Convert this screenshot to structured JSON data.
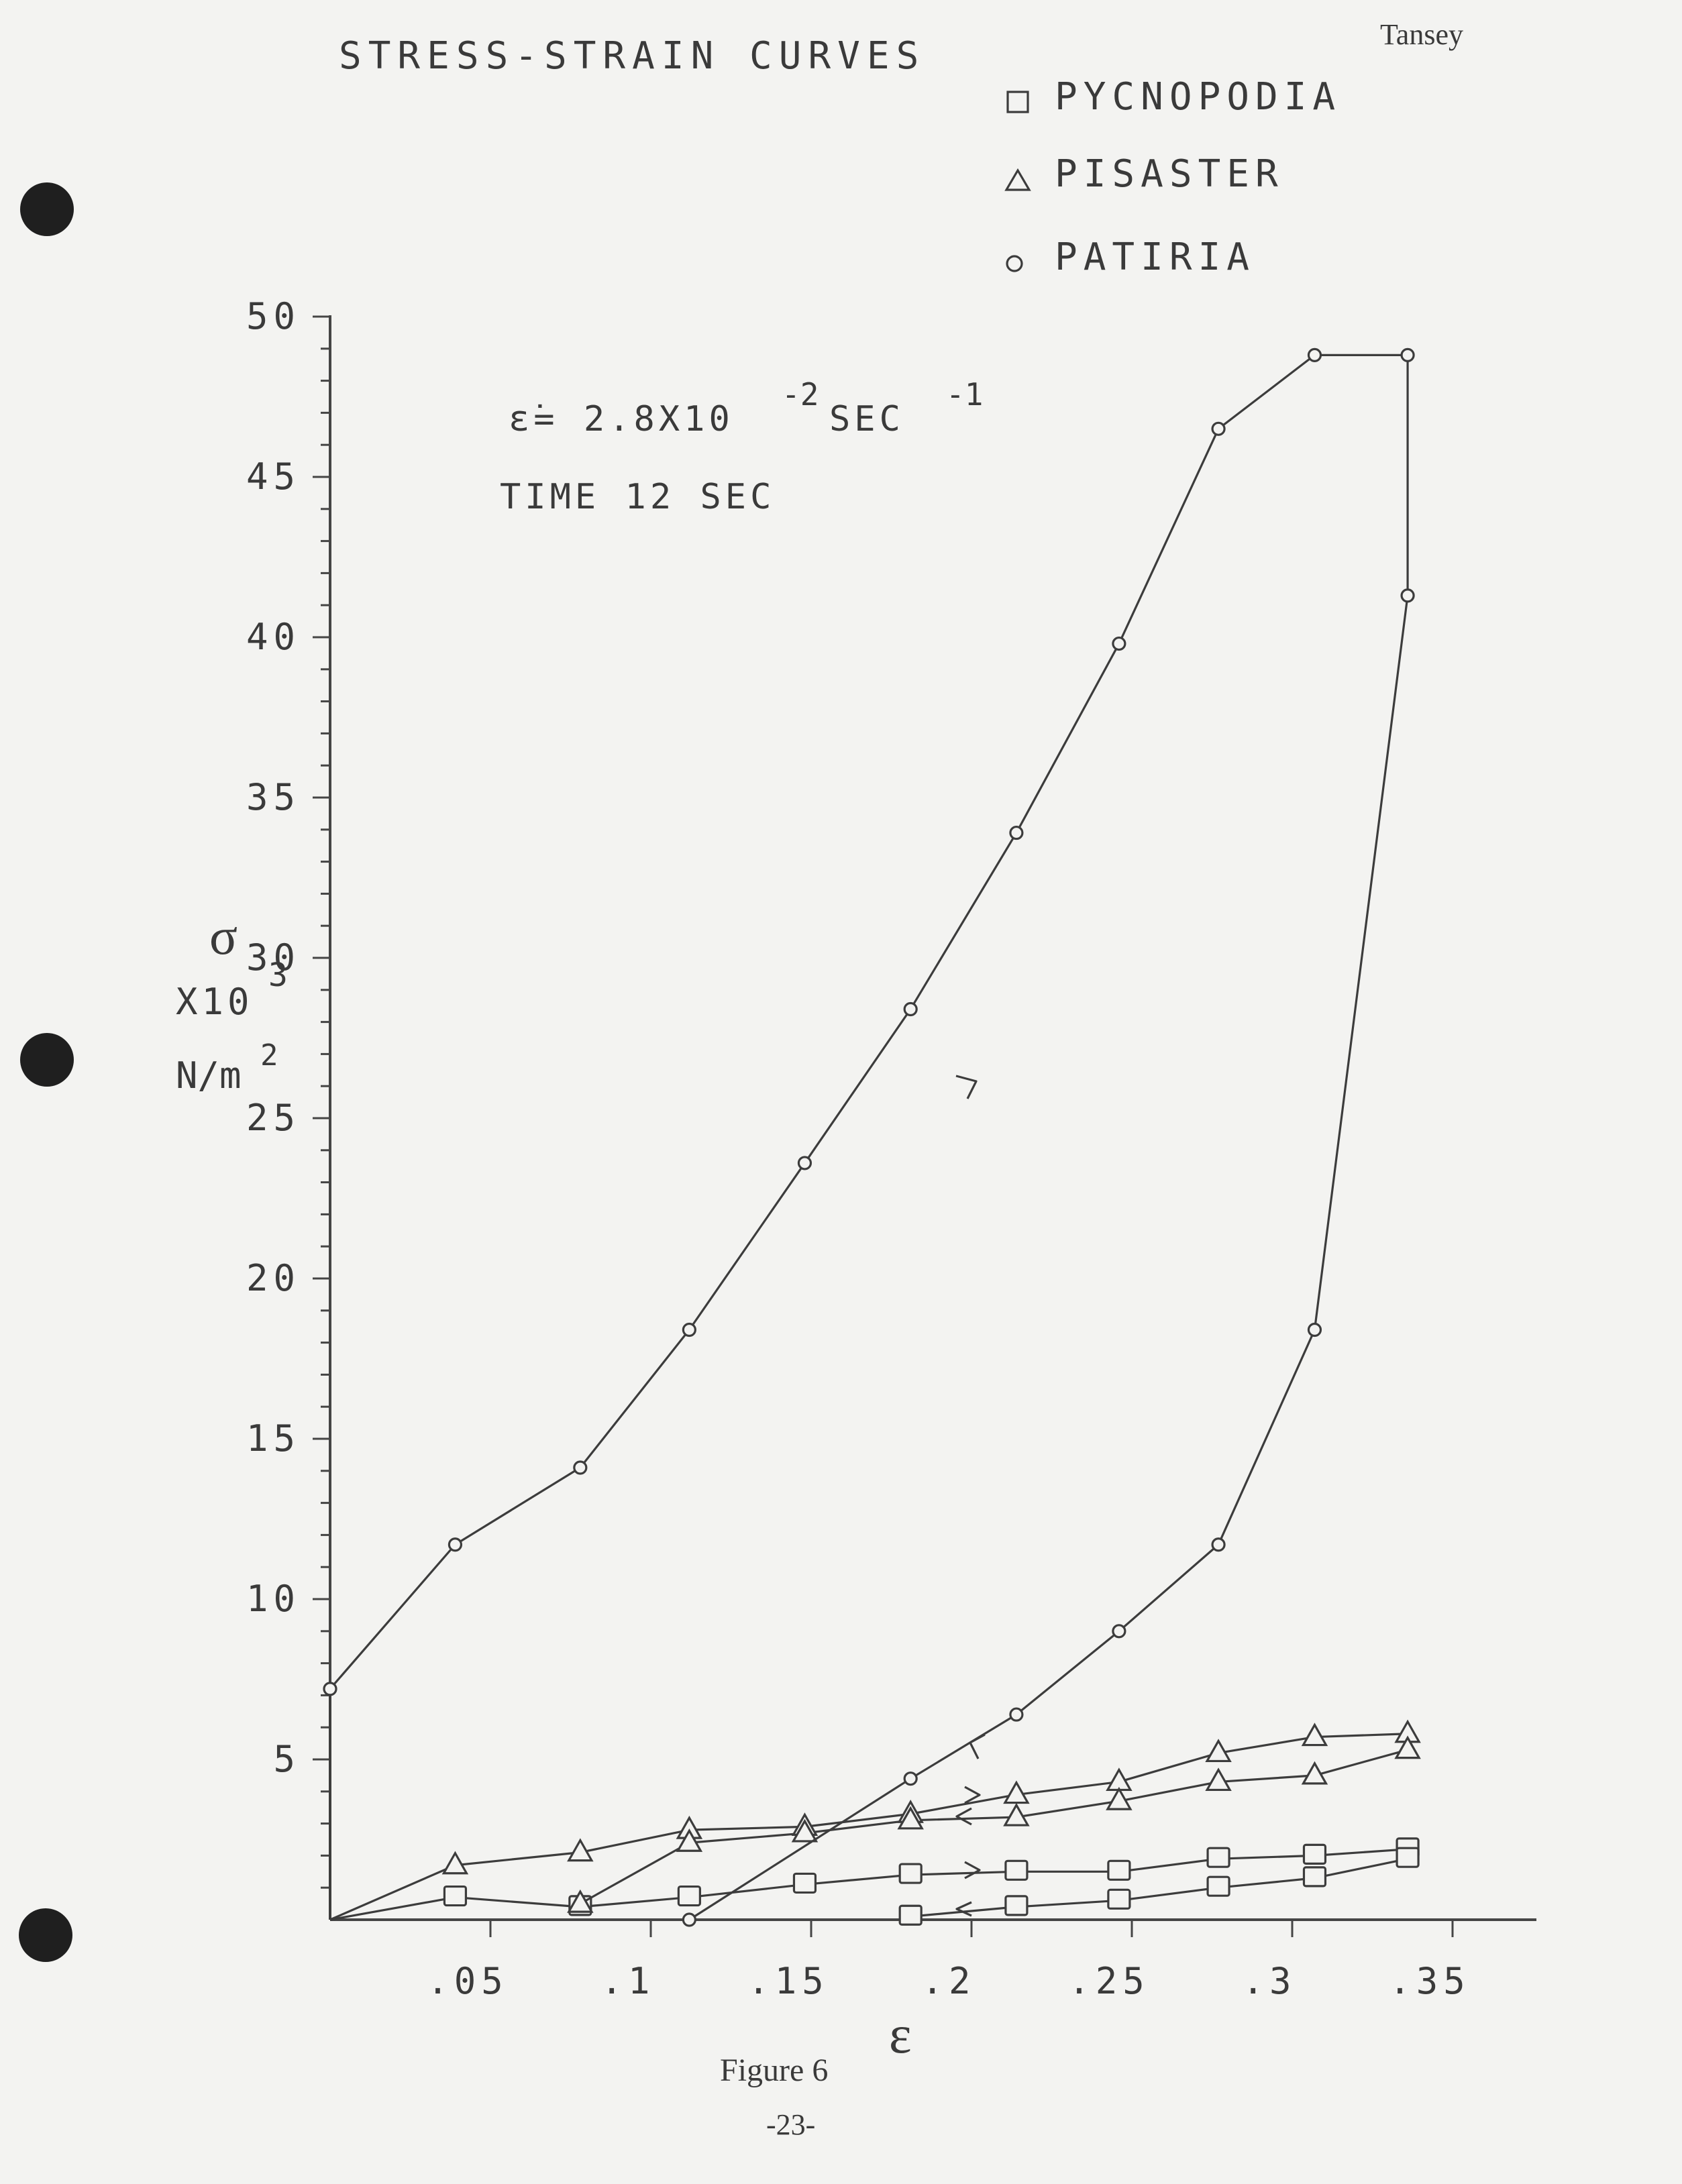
{
  "header": {
    "author": "Tansey"
  },
  "chart_data": {
    "type": "line",
    "title": "STRESS-STRAIN CURVES",
    "xlabel": "ε",
    "ylabel": [
      "σ",
      "X10",
      "3",
      "N/m",
      "2"
    ],
    "annotation_rate": {
      "prefix": "ε̇= 2.8X10",
      "exp1": "-2",
      "unit": "SEC",
      "exp2": "-1"
    },
    "annotation_time": "TIME  12 SEC",
    "xlim": [
      0,
      0.375
    ],
    "ylim": [
      0,
      50
    ],
    "xticks": [
      ".05",
      ".1",
      ".15",
      ".2",
      ".25",
      ".3",
      ".35"
    ],
    "xtick_values": [
      0.05,
      0.1,
      0.15,
      0.2,
      0.25,
      0.3,
      0.35
    ],
    "yticks": [
      "5",
      "10",
      "15",
      "20",
      "25",
      "30",
      "35",
      "40",
      "45",
      "50"
    ],
    "ytick_values": [
      5,
      10,
      15,
      20,
      25,
      30,
      35,
      40,
      45,
      50
    ],
    "legend_position": "top-right",
    "series": [
      {
        "name": "PYCNOPODIA",
        "marker": "square",
        "loading": {
          "x": [
            0,
            0.039,
            0.078,
            0.112,
            0.148,
            0.181,
            0.214,
            0.246,
            0.277,
            0.307,
            0.336
          ],
          "y": [
            0,
            0.7,
            0.4,
            0.7,
            1.1,
            1.4,
            1.5,
            1.5,
            1.9,
            2.0,
            2.2
          ]
        },
        "unloading": {
          "x": [
            0.336,
            0.307,
            0.277,
            0.246,
            0.214,
            0.181
          ],
          "y": [
            1.9,
            1.3,
            1.0,
            0.6,
            0.4,
            0.1
          ]
        }
      },
      {
        "name": "PISASTER",
        "marker": "triangle",
        "loading": {
          "x": [
            0,
            0.039,
            0.078,
            0.112,
            0.148,
            0.181,
            0.214,
            0.246,
            0.277,
            0.307,
            0.336
          ],
          "y": [
            0,
            1.7,
            2.1,
            2.8,
            2.9,
            3.3,
            3.9,
            4.3,
            5.2,
            5.7,
            5.8
          ]
        },
        "unloading": {
          "x": [
            0.336,
            0.307,
            0.277,
            0.246,
            0.214,
            0.181,
            0.148,
            0.112,
            0.078
          ],
          "y": [
            5.3,
            4.5,
            4.3,
            3.7,
            3.2,
            3.1,
            2.7,
            2.4,
            0.5
          ]
        }
      },
      {
        "name": "PATIRIA",
        "marker": "circle",
        "loading": {
          "x": [
            0,
            0.039,
            0.078,
            0.112,
            0.148,
            0.181,
            0.214,
            0.246,
            0.277,
            0.307,
            0.336
          ],
          "y": [
            7.2,
            11.7,
            14.1,
            18.4,
            23.6,
            28.4,
            33.9,
            39.8,
            46.5,
            48.8,
            48.8
          ]
        },
        "unloading": {
          "x": [
            0.336,
            0.307,
            0.277,
            0.246,
            0.214,
            0.181,
            0.112
          ],
          "y": [
            41.3,
            18.4,
            11.7,
            9.0,
            6.4,
            4.4,
            0
          ]
        }
      }
    ]
  },
  "caption": {
    "figure": "Figure 6",
    "page": "-23-"
  }
}
